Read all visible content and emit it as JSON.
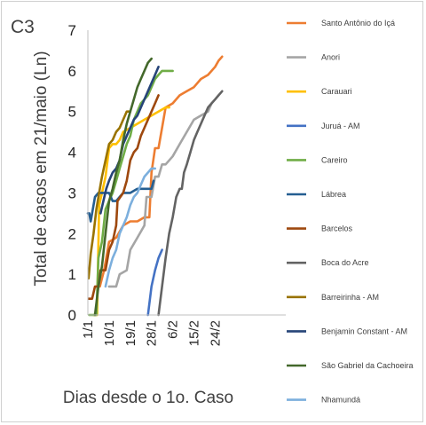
{
  "chart_data": {
    "type": "line",
    "panel_label": "C3",
    "title": "",
    "xlabel": "Dias desde o 1o. Caso",
    "ylabel": "Total de casos em 21/maio (Ln)",
    "ylim": [
      0,
      7
    ],
    "xlim": [
      1,
      29
    ],
    "y_ticks": [
      0,
      1,
      2,
      3,
      4,
      5,
      6,
      7
    ],
    "x_ticks": [
      {
        "value": 1,
        "label": "1/1"
      },
      {
        "value": 4,
        "label": "10/1"
      },
      {
        "value": 7,
        "label": "19/1"
      },
      {
        "value": 10,
        "label": "28/1"
      },
      {
        "value": 13,
        "label": "6/2"
      },
      {
        "value": 16,
        "label": "15/2"
      },
      {
        "value": 19,
        "label": "24/2"
      }
    ],
    "grid": false,
    "legend_position": "right",
    "series": [
      {
        "name": "Santo Antônio do Içá",
        "color": "#ED7D31",
        "points": [
          [
            2.7,
            0.7
          ],
          [
            3.3,
            1.1
          ],
          [
            4.0,
            1.8
          ],
          [
            5.0,
            1.9
          ],
          [
            6.0,
            2.2
          ],
          [
            7.0,
            2.3
          ],
          [
            8.0,
            2.3
          ],
          [
            9.0,
            2.4
          ],
          [
            9.7,
            2.4
          ],
          [
            10.0,
            3.5
          ],
          [
            10.5,
            4.1
          ],
          [
            11.0,
            4.1
          ],
          [
            11.5,
            4.6
          ],
          [
            12.0,
            5.1
          ],
          [
            13.0,
            5.2
          ],
          [
            14.0,
            5.4
          ],
          [
            15.0,
            5.5
          ],
          [
            16.0,
            5.6
          ],
          [
            17.0,
            5.8
          ],
          [
            18.0,
            5.9
          ],
          [
            19.0,
            6.1
          ],
          [
            19.5,
            6.25
          ],
          [
            20.0,
            6.35
          ]
        ]
      },
      {
        "name": "Anori",
        "color": "#A5A5A5",
        "points": [
          [
            4.0,
            0.7
          ],
          [
            5.0,
            0.7
          ],
          [
            5.5,
            1.0
          ],
          [
            6.5,
            1.1
          ],
          [
            7.0,
            1.6
          ],
          [
            8.0,
            1.9
          ],
          [
            9.0,
            2.2
          ],
          [
            9.3,
            2.9
          ],
          [
            10.0,
            2.9
          ],
          [
            10.5,
            3.4
          ],
          [
            11.0,
            3.4
          ],
          [
            11.5,
            3.7
          ],
          [
            12.0,
            3.7
          ],
          [
            13.0,
            3.9
          ],
          [
            14.0,
            4.2
          ],
          [
            15.0,
            4.5
          ],
          [
            16.0,
            4.8
          ],
          [
            17.0,
            4.9
          ],
          [
            18.0,
            5.0
          ],
          [
            18.5,
            5.2
          ]
        ]
      },
      {
        "name": "Carauari",
        "color": "#FFC000",
        "points": [
          [
            1.8,
            0.0
          ],
          [
            2.3,
            0.0
          ],
          [
            2.6,
            2.7
          ],
          [
            3.0,
            3.0
          ],
          [
            3.5,
            3.4
          ],
          [
            4.0,
            4.1
          ],
          [
            4.5,
            4.2
          ],
          [
            5.0,
            4.2
          ],
          [
            5.5,
            4.3
          ],
          [
            6.0,
            4.5
          ],
          [
            7.0,
            4.6
          ],
          [
            8.0,
            4.7
          ],
          [
            9.0,
            4.8
          ],
          [
            10.0,
            4.9
          ],
          [
            11.0,
            5.0
          ],
          [
            12.0,
            5.1
          ],
          [
            12.5,
            5.1
          ]
        ]
      },
      {
        "name": "Juruá - AM",
        "color": "#4472C4",
        "points": [
          [
            9.5,
            0.0
          ],
          [
            10.0,
            0.7
          ],
          [
            10.5,
            1.1
          ],
          [
            11.0,
            1.4
          ],
          [
            11.5,
            1.6
          ]
        ]
      },
      {
        "name": "Careiro",
        "color": "#70AD47",
        "points": [
          [
            1.2,
            0.0
          ],
          [
            2.2,
            0.0
          ],
          [
            2.5,
            1.4
          ],
          [
            3.0,
            1.8
          ],
          [
            3.5,
            2.6
          ],
          [
            4.0,
            2.8
          ],
          [
            4.5,
            3.0
          ],
          [
            5.0,
            3.3
          ],
          [
            5.5,
            3.6
          ],
          [
            6.0,
            3.9
          ],
          [
            6.5,
            4.2
          ],
          [
            7.0,
            4.4
          ],
          [
            7.5,
            4.8
          ],
          [
            8.0,
            5.0
          ],
          [
            8.5,
            5.2
          ],
          [
            9.0,
            5.3
          ],
          [
            9.5,
            5.4
          ],
          [
            10.0,
            5.6
          ],
          [
            10.5,
            5.8
          ],
          [
            11.0,
            5.9
          ],
          [
            11.5,
            6.0
          ],
          [
            12.0,
            6.0
          ],
          [
            13.0,
            6.0
          ]
        ]
      },
      {
        "name": "Lábrea",
        "color": "#255E91",
        "points": [
          [
            1.0,
            2.5
          ],
          [
            1.2,
            2.5
          ],
          [
            1.4,
            2.3
          ],
          [
            1.6,
            2.5
          ],
          [
            2.0,
            2.9
          ],
          [
            2.5,
            3.0
          ],
          [
            3.0,
            3.0
          ],
          [
            4.0,
            3.0
          ],
          [
            4.5,
            2.8
          ],
          [
            5.0,
            2.8
          ],
          [
            5.5,
            2.9
          ],
          [
            6.0,
            3.0
          ],
          [
            7.0,
            3.0
          ],
          [
            8.0,
            3.1
          ],
          [
            9.0,
            3.1
          ],
          [
            10.0,
            3.1
          ],
          [
            10.3,
            3.3
          ]
        ]
      },
      {
        "name": "Barcelos",
        "color": "#9E480E",
        "points": [
          [
            1.1,
            0.4
          ],
          [
            1.6,
            0.4
          ],
          [
            2.0,
            0.7
          ],
          [
            2.5,
            0.7
          ],
          [
            2.8,
            1.1
          ],
          [
            3.5,
            1.1
          ],
          [
            4.0,
            1.6
          ],
          [
            4.5,
            1.8
          ],
          [
            5.0,
            2.2
          ],
          [
            5.2,
            2.8
          ],
          [
            6.0,
            3.0
          ],
          [
            6.5,
            3.3
          ],
          [
            7.0,
            3.8
          ],
          [
            7.5,
            4.0
          ],
          [
            8.0,
            4.1
          ],
          [
            8.5,
            4.4
          ],
          [
            9.0,
            4.6
          ],
          [
            9.5,
            4.8
          ],
          [
            10.0,
            5.0
          ],
          [
            10.5,
            5.2
          ],
          [
            11.0,
            5.4
          ]
        ]
      },
      {
        "name": "Boca do Acre",
        "color": "#636363",
        "points": [
          [
            11.0,
            0.0
          ],
          [
            12.0,
            1.4
          ],
          [
            12.5,
            2.0
          ],
          [
            13.0,
            2.4
          ],
          [
            13.5,
            2.9
          ],
          [
            14.0,
            3.1
          ],
          [
            14.3,
            3.1
          ],
          [
            14.6,
            3.5
          ],
          [
            15.0,
            3.7
          ],
          [
            15.5,
            4.0
          ],
          [
            16.0,
            4.3
          ],
          [
            16.5,
            4.5
          ],
          [
            17.0,
            4.7
          ],
          [
            17.5,
            4.9
          ],
          [
            18.0,
            5.1
          ],
          [
            18.5,
            5.2
          ],
          [
            19.0,
            5.3
          ],
          [
            19.5,
            5.4
          ],
          [
            20.0,
            5.5
          ]
        ]
      },
      {
        "name": "Barreirinha - AM",
        "color": "#997300",
        "points": [
          [
            1.1,
            0.9
          ],
          [
            1.4,
            1.5
          ],
          [
            1.8,
            2.0
          ],
          [
            2.2,
            2.6
          ],
          [
            2.6,
            3.0
          ],
          [
            3.0,
            3.4
          ],
          [
            3.5,
            3.8
          ],
          [
            4.0,
            4.2
          ],
          [
            4.5,
            4.3
          ],
          [
            5.0,
            4.5
          ],
          [
            5.5,
            4.6
          ],
          [
            6.0,
            4.8
          ],
          [
            6.5,
            5.0
          ],
          [
            7.0,
            5.0
          ]
        ]
      },
      {
        "name": "Benjamin Constant - AM",
        "color": "#264478",
        "points": [
          [
            2.8,
            2.5
          ],
          [
            3.2,
            2.8
          ],
          [
            3.6,
            3.1
          ],
          [
            4.0,
            3.3
          ],
          [
            4.5,
            3.5
          ],
          [
            5.0,
            3.6
          ],
          [
            5.5,
            3.8
          ],
          [
            6.0,
            4.2
          ],
          [
            6.5,
            4.4
          ],
          [
            7.0,
            4.6
          ],
          [
            7.5,
            4.8
          ],
          [
            8.0,
            4.9
          ],
          [
            8.5,
            5.1
          ],
          [
            9.0,
            5.3
          ],
          [
            9.5,
            5.5
          ],
          [
            10.0,
            5.7
          ],
          [
            10.5,
            5.9
          ],
          [
            11.0,
            6.1
          ]
        ]
      },
      {
        "name": "São Gabriel da Cachoeira",
        "color": "#43682B",
        "points": [
          [
            2.0,
            0.0
          ],
          [
            2.5,
            0.7
          ],
          [
            3.0,
            1.2
          ],
          [
            3.5,
            2.0
          ],
          [
            4.0,
            2.8
          ],
          [
            4.5,
            3.1
          ],
          [
            5.0,
            3.5
          ],
          [
            5.5,
            3.8
          ],
          [
            6.0,
            4.3
          ],
          [
            6.5,
            4.7
          ],
          [
            7.0,
            5.0
          ],
          [
            7.5,
            5.3
          ],
          [
            8.0,
            5.6
          ],
          [
            8.5,
            5.8
          ],
          [
            9.0,
            6.0
          ],
          [
            9.5,
            6.2
          ],
          [
            10.0,
            6.3
          ]
        ]
      },
      {
        "name": "Nhamundá",
        "color": "#7CAFDD",
        "points": [
          [
            3.5,
            0.7
          ],
          [
            4.0,
            1.1
          ],
          [
            4.5,
            1.4
          ],
          [
            5.0,
            1.6
          ],
          [
            5.5,
            2.0
          ],
          [
            6.0,
            2.2
          ],
          [
            6.5,
            2.4
          ],
          [
            7.0,
            2.7
          ],
          [
            7.5,
            2.9
          ],
          [
            8.0,
            3.0
          ],
          [
            8.5,
            3.2
          ],
          [
            9.0,
            3.4
          ],
          [
            9.5,
            3.5
          ],
          [
            10.0,
            3.6
          ],
          [
            10.5,
            3.6
          ]
        ]
      }
    ]
  }
}
